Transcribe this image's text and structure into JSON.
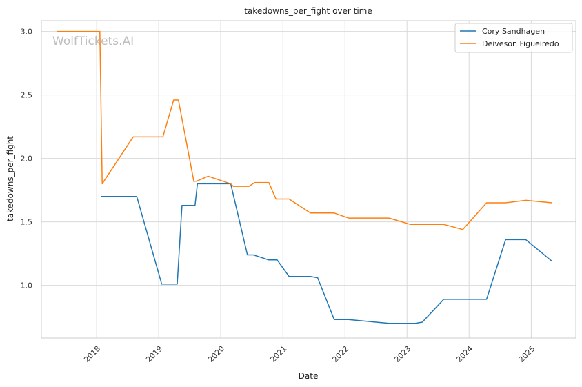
{
  "chart_data": {
    "type": "line",
    "title": "takedowns_per_fight over time",
    "xlabel": "Date",
    "ylabel": "takedowns_per_fight",
    "watermark": "WolfTickets.AI",
    "xlim": [
      "2017-02-10",
      "2025-09-20"
    ],
    "ylim": [
      0.585,
      3.085
    ],
    "x_ticks": [
      "2018-01-01",
      "2019-01-01",
      "2020-01-01",
      "2021-01-01",
      "2022-01-01",
      "2023-01-01",
      "2024-01-01",
      "2025-01-01"
    ],
    "x_tick_labels": [
      "2018",
      "2019",
      "2020",
      "2021",
      "2022",
      "2023",
      "2024",
      "2025"
    ],
    "y_ticks": [
      1.0,
      1.5,
      2.0,
      2.5,
      3.0
    ],
    "y_tick_labels": [
      "1.0",
      "1.5",
      "2.0",
      "2.5",
      "3.0"
    ],
    "grid": true,
    "legend_position": "top-right",
    "series": [
      {
        "name": "Cory Sandhagen",
        "color": "#1f77b4",
        "points": [
          [
            "2018-01-28",
            1.7
          ],
          [
            "2018-08-25",
            1.7
          ],
          [
            "2019-01-19",
            1.01
          ],
          [
            "2019-04-20",
            1.01
          ],
          [
            "2019-05-18",
            1.63
          ],
          [
            "2019-08-03",
            1.63
          ],
          [
            "2019-08-17",
            1.8
          ],
          [
            "2020-02-29",
            1.8
          ],
          [
            "2020-06-06",
            1.24
          ],
          [
            "2020-07-11",
            1.24
          ],
          [
            "2020-10-10",
            1.2
          ],
          [
            "2020-11-28",
            1.2
          ],
          [
            "2021-02-06",
            1.07
          ],
          [
            "2021-06-12",
            1.07
          ],
          [
            "2021-07-24",
            1.06
          ],
          [
            "2021-10-30",
            0.73
          ],
          [
            "2022-01-22",
            0.73
          ],
          [
            "2022-09-17",
            0.7
          ],
          [
            "2023-02-18",
            0.7
          ],
          [
            "2023-04-01",
            0.71
          ],
          [
            "2023-08-05",
            0.89
          ],
          [
            "2024-04-13",
            0.89
          ],
          [
            "2024-08-03",
            1.36
          ],
          [
            "2024-11-30",
            1.36
          ],
          [
            "2025-05-03",
            1.19
          ]
        ]
      },
      {
        "name": "Deiveson Figueiredo",
        "color": "#ff7f0e",
        "points": [
          [
            "2017-05-13",
            3.0
          ],
          [
            "2018-01-20",
            3.0
          ],
          [
            "2018-02-03",
            1.8
          ],
          [
            "2018-08-04",
            2.17
          ],
          [
            "2019-01-26",
            2.17
          ],
          [
            "2019-03-30",
            2.46
          ],
          [
            "2019-04-27",
            2.46
          ],
          [
            "2019-07-27",
            1.82
          ],
          [
            "2019-08-10",
            1.82
          ],
          [
            "2019-10-19",
            1.86
          ],
          [
            "2020-02-29",
            1.8
          ],
          [
            "2020-03-15",
            1.78
          ],
          [
            "2020-06-15",
            1.78
          ],
          [
            "2020-07-19",
            1.81
          ],
          [
            "2020-10-10",
            1.81
          ],
          [
            "2020-11-21",
            1.68
          ],
          [
            "2021-02-06",
            1.68
          ],
          [
            "2021-06-12",
            1.57
          ],
          [
            "2021-10-30",
            1.57
          ],
          [
            "2022-01-22",
            1.53
          ],
          [
            "2022-09-17",
            1.53
          ],
          [
            "2023-01-21",
            1.48
          ],
          [
            "2023-08-05",
            1.48
          ],
          [
            "2023-11-25",
            1.44
          ],
          [
            "2024-04-13",
            1.65
          ],
          [
            "2024-08-03",
            1.65
          ],
          [
            "2024-11-30",
            1.67
          ],
          [
            "2025-05-03",
            1.65
          ]
        ]
      }
    ]
  }
}
